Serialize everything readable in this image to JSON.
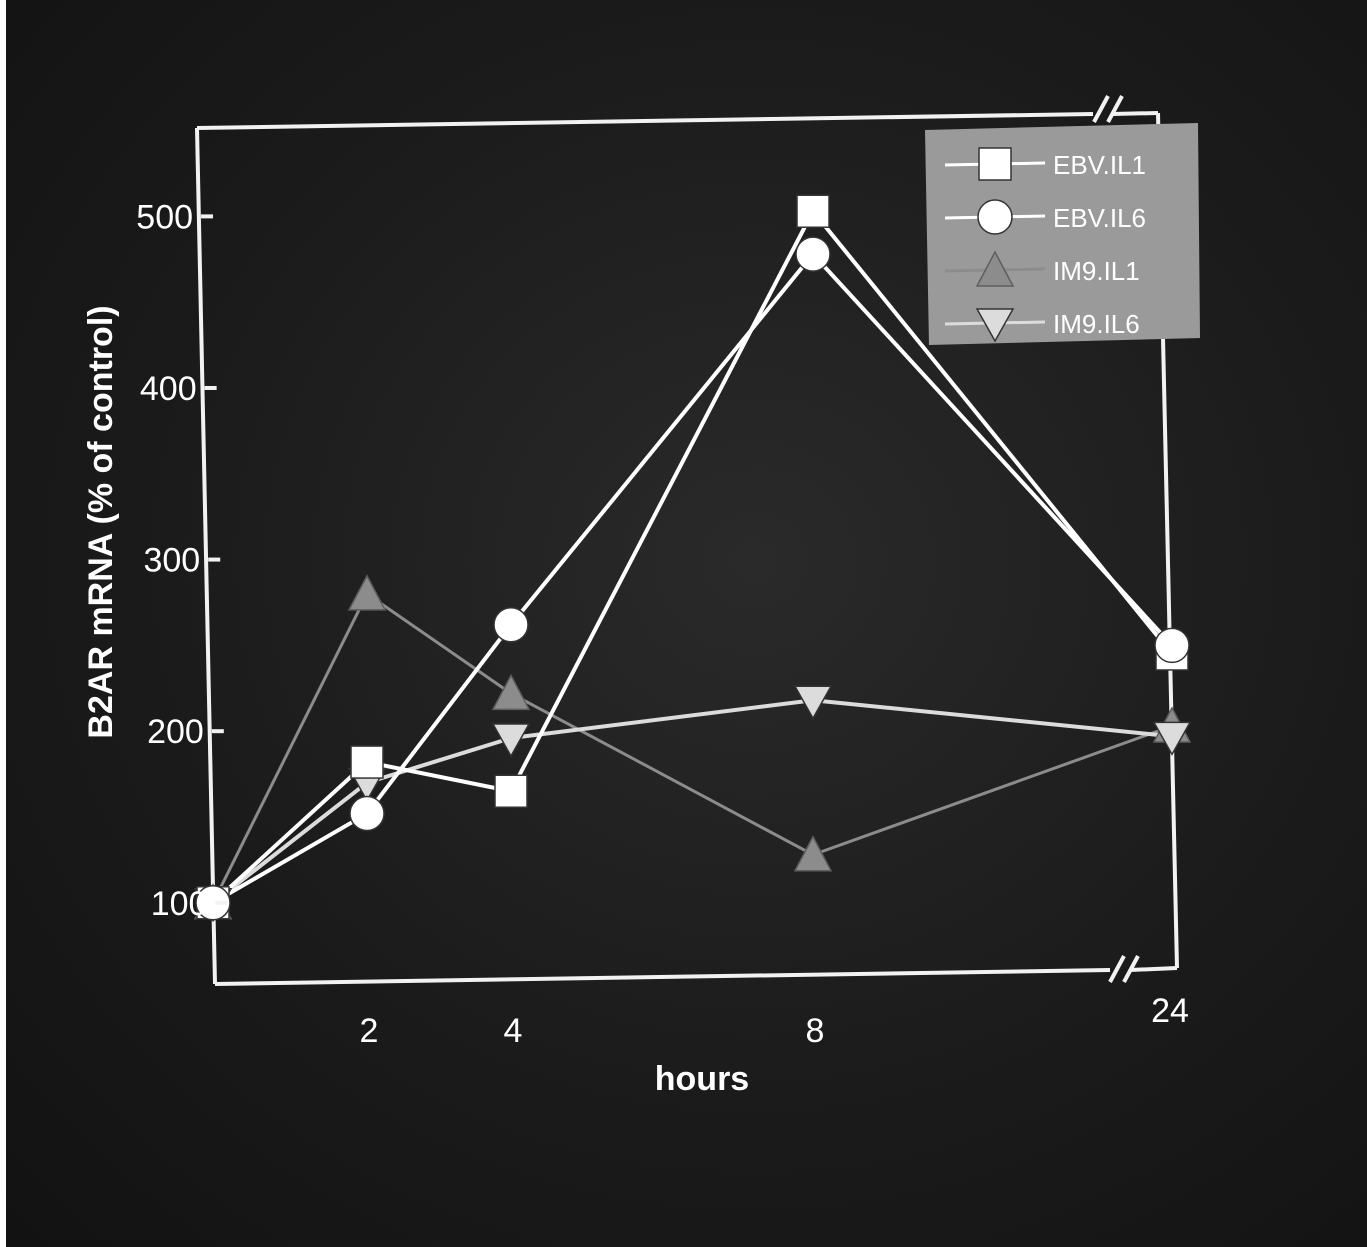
{
  "chart_data": {
    "type": "line",
    "title": "",
    "xlabel": "hours",
    "ylabel": "B2AR mRNA (% of control)",
    "x": [
      0,
      2,
      4,
      8,
      24
    ],
    "x_tick_labels": [
      "2",
      "4",
      "8",
      "24"
    ],
    "y_tick_labels": [
      "100",
      "200",
      "300",
      "400",
      "500"
    ],
    "ylim": [
      55,
      555
    ],
    "x_axis_break": true,
    "grid": false,
    "legend_position": "top-right",
    "series": [
      {
        "name": "EBV.IL1",
        "marker": "square",
        "color": "#ffffff",
        "values": [
          100,
          182,
          165,
          503,
          245
        ]
      },
      {
        "name": "EBV.IL6",
        "marker": "circle",
        "color": "#ffffff",
        "values": [
          100,
          152,
          262,
          478,
          250
        ]
      },
      {
        "name": "IM9.IL1",
        "marker": "triangle-up",
        "color": "#8c8c8c",
        "values": [
          100,
          280,
          222,
          128,
          203
        ]
      },
      {
        "name": "IM9.IL6",
        "marker": "triangle-down",
        "color": "#dcdcdc",
        "values": [
          100,
          170,
          196,
          218,
          197
        ]
      }
    ]
  },
  "colors": {
    "background": "#1b1b1b",
    "axis": "#f2f2f2",
    "legend_bg": "#9a9a9a"
  }
}
